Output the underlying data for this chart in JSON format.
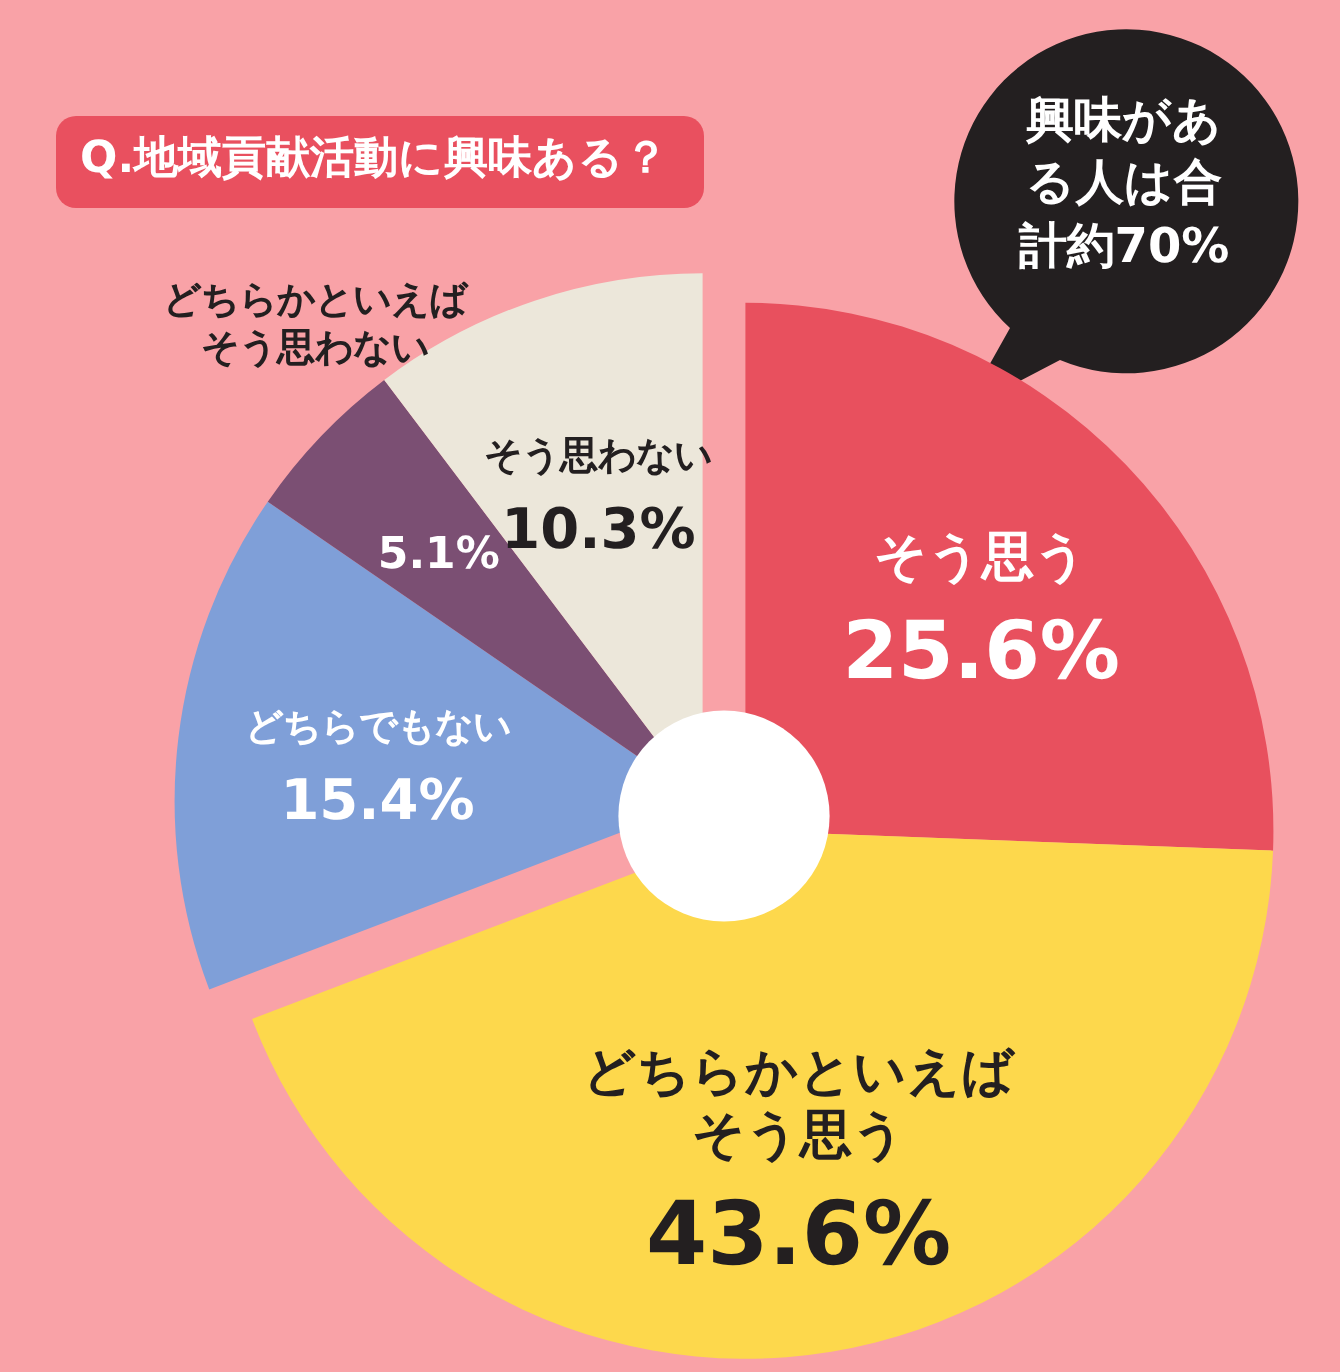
{
  "chart_data": {
    "type": "donut",
    "title": "Q.地域貢献活動に興味ある？",
    "categories": [
      "そう思う",
      "どちらかといえばそう思う",
      "どちらでもない",
      "どちらかといえばそう思わない",
      "そう思わない"
    ],
    "values": [
      25.6,
      43.6,
      15.4,
      5.1,
      10.3
    ],
    "value_labels": [
      "25.6%",
      "43.6%",
      "15.4%",
      "5.1%",
      "10.3%"
    ],
    "colors": [
      "#e8505e",
      "#fdd84c",
      "#7f9fd8",
      "#7b4f73",
      "#ece7da"
    ],
    "annotations": [
      "興味がある人は合計約70%"
    ]
  }
}
